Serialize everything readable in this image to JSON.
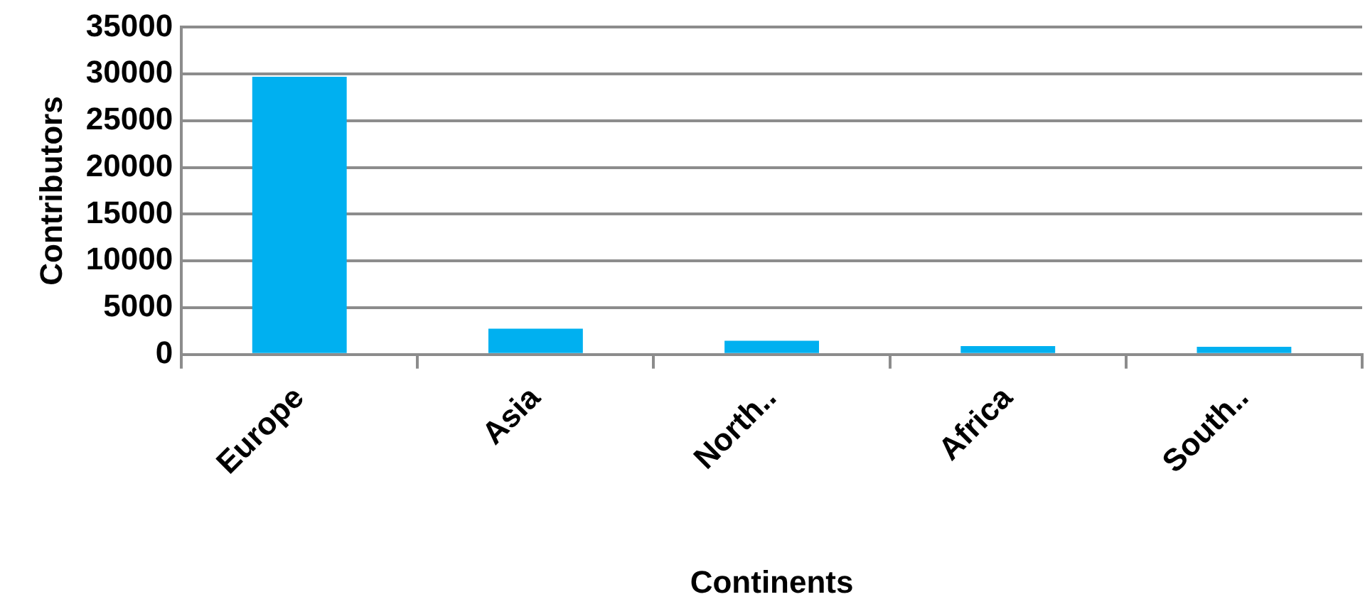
{
  "chart_data": {
    "type": "bar",
    "xlabel": "Continents",
    "ylabel": "Contributors",
    "categories": [
      "Europe",
      "Asia",
      "North..",
      "Africa",
      "South.."
    ],
    "values": [
      29700,
      2750,
      1450,
      880,
      820
    ],
    "color": "#00b0f0",
    "ylim": [
      0,
      35000
    ],
    "yticks": [
      0,
      5000,
      10000,
      15000,
      20000,
      25000,
      30000,
      35000
    ],
    "grid": "y"
  }
}
